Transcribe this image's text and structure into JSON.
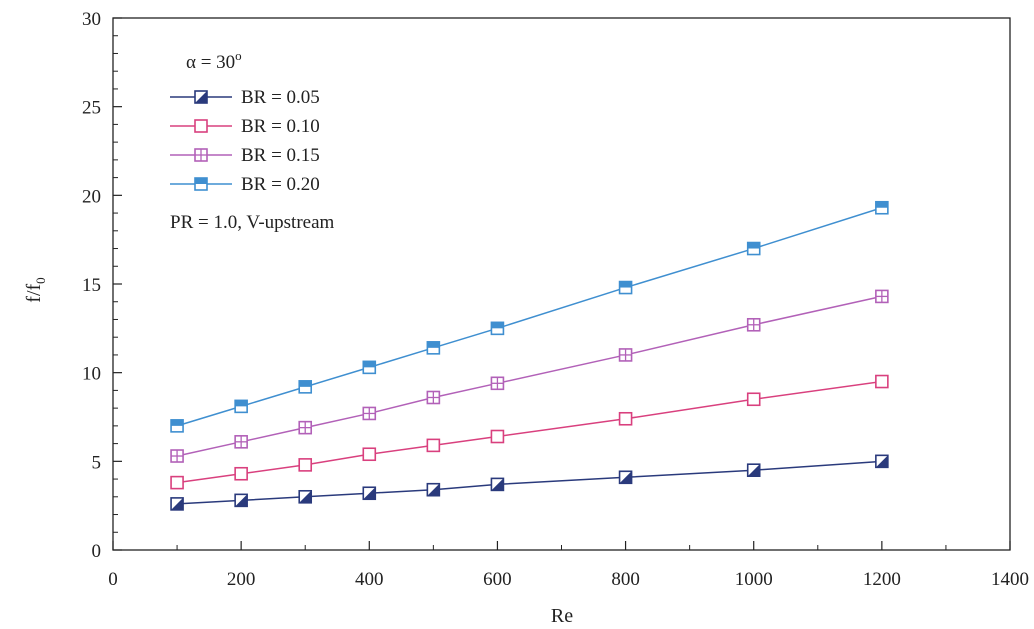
{
  "chart_data": {
    "type": "line",
    "title": "",
    "xlabel": "Re",
    "ylabel_main": "f/f",
    "ylabel_sub": "0",
    "xlim": [
      0,
      1400
    ],
    "ylim": [
      0,
      30
    ],
    "xticks": [
      0,
      200,
      400,
      600,
      800,
      1000,
      1200,
      1400
    ],
    "yticks": [
      0,
      5,
      10,
      15,
      20,
      25,
      30
    ],
    "grid": false,
    "legend_position": "top-left",
    "legend_title_prefix": "α = 30",
    "legend_title_sup": "o",
    "annotation": "PR = 1.0, V-upstream",
    "x": [
      100,
      200,
      300,
      400,
      500,
      600,
      800,
      1000,
      1200
    ],
    "series": [
      {
        "name": "BR = 0.05",
        "color": "#2a3a7c",
        "marker": "half-filled-square",
        "values": [
          2.6,
          2.8,
          3.0,
          3.2,
          3.4,
          3.7,
          4.1,
          4.5,
          5.0
        ]
      },
      {
        "name": "BR = 0.10",
        "color": "#d9407e",
        "marker": "open-square",
        "values": [
          3.8,
          4.3,
          4.8,
          5.4,
          5.9,
          6.4,
          7.4,
          8.5,
          9.5
        ]
      },
      {
        "name": "BR = 0.15",
        "color": "#b261b8",
        "marker": "crossed-square",
        "values": [
          5.3,
          6.1,
          6.9,
          7.7,
          8.6,
          9.4,
          11.0,
          12.7,
          14.3
        ]
      },
      {
        "name": "BR = 0.20",
        "color": "#3f8fd0",
        "marker": "top-filled-square",
        "values": [
          7.0,
          8.1,
          9.2,
          10.3,
          11.4,
          12.5,
          14.8,
          17.0,
          19.3
        ]
      }
    ]
  }
}
